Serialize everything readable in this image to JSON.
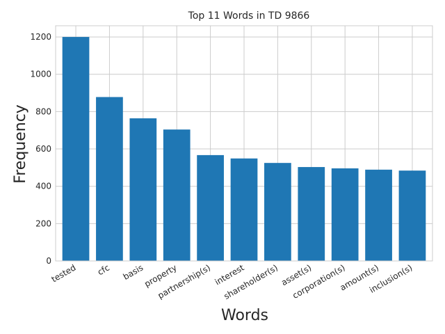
{
  "chart_data": {
    "type": "bar",
    "title": "Top 11 Words in TD 9866",
    "xlabel": "Words",
    "ylabel": "Frequency",
    "categories": [
      "tested",
      "cfc",
      "basis",
      "property",
      "partnership(s)",
      "interest",
      "shareholder(s)",
      "asset(s)",
      "corporation(s)",
      "amount(s)",
      "inclusion(s)"
    ],
    "values": [
      1200,
      878,
      764,
      704,
      567,
      549,
      525,
      503,
      496,
      489,
      484
    ],
    "ylim": [
      0,
      1260
    ],
    "yticks": [
      0,
      200,
      400,
      600,
      800,
      1000,
      1200
    ],
    "grid": true,
    "bar_color": "#1f77b4"
  }
}
